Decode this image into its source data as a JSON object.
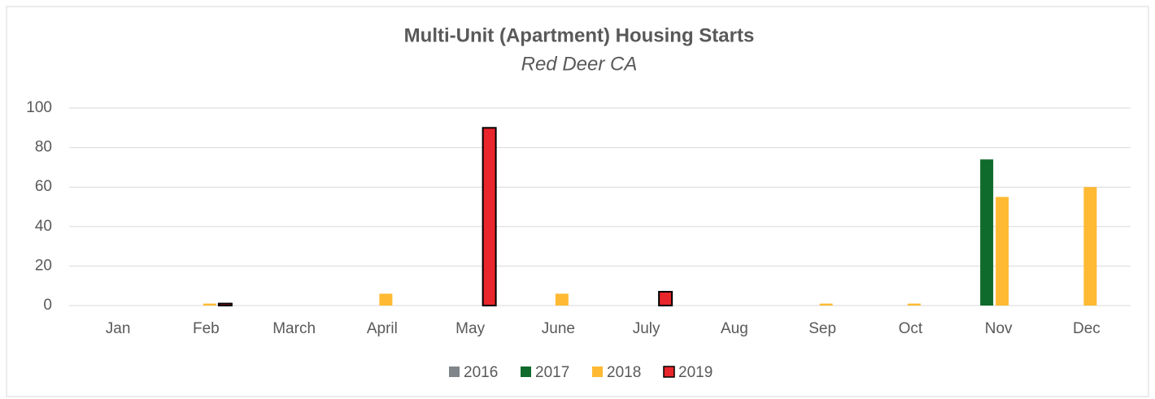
{
  "chart_data": {
    "type": "bar",
    "title": "Multi-Unit (Apartment) Housing Starts",
    "subtitle": "Red Deer CA",
    "categories": [
      "Jan",
      "Feb",
      "March",
      "April",
      "May",
      "June",
      "July",
      "Aug",
      "Sep",
      "Oct",
      "Nov",
      "Dec"
    ],
    "series": [
      {
        "name": "2016",
        "color": "#808589",
        "values": [
          0,
          0,
          0,
          0,
          0,
          0,
          0,
          0,
          0,
          0,
          0,
          0
        ]
      },
      {
        "name": "2017",
        "color": "#0f6b2c",
        "values": [
          0,
          0,
          0,
          0,
          0,
          0,
          0,
          0,
          0,
          0,
          74,
          0
        ]
      },
      {
        "name": "2018",
        "color": "#ffb933",
        "values": [
          0,
          1,
          0,
          6,
          0,
          6,
          0,
          0,
          1,
          1,
          55,
          60
        ]
      },
      {
        "name": "2019",
        "color": "#e8262b",
        "values": [
          0,
          1,
          0,
          0,
          90,
          0,
          7,
          0,
          0,
          0,
          0,
          0
        ]
      }
    ],
    "ylim": [
      0,
      100
    ],
    "yticks": [
      0,
      20,
      40,
      60,
      80,
      100
    ],
    "grid": true,
    "legend": "bottom"
  }
}
